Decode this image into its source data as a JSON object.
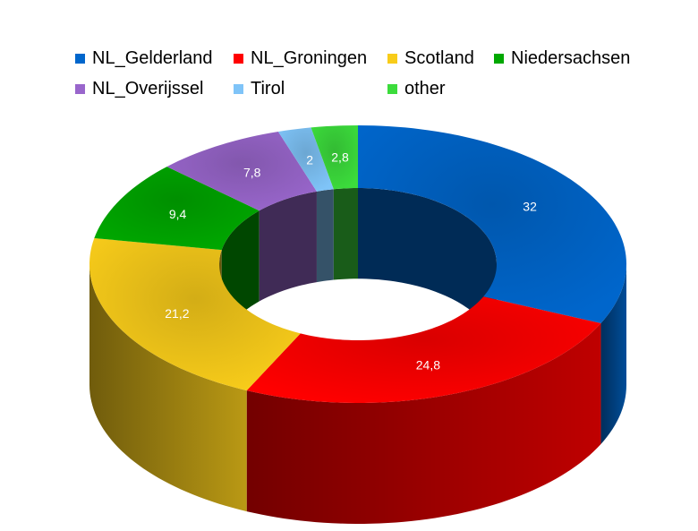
{
  "chart_data": {
    "type": "pie",
    "variant": "3d-donut",
    "title": "",
    "legend_position": "top",
    "series": [
      {
        "name": "NL_Gelderland",
        "value": 32,
        "label": "32",
        "color": "#0066CC"
      },
      {
        "name": "NL_Groningen",
        "value": 24.8,
        "label": "24,8",
        "color": "#FF0000"
      },
      {
        "name": "Scotland",
        "value": 21.2,
        "label": "21,2",
        "color": "#F8CC1A"
      },
      {
        "name": "Niedersachsen",
        "value": 9.4,
        "label": "9,4",
        "color": "#00A800"
      },
      {
        "name": "NL_Overijssel",
        "value": 7.8,
        "label": "7,8",
        "color": "#9966CC"
      },
      {
        "name": "Tirol",
        "value": 2,
        "label": "2",
        "color": "#7FC4F8"
      },
      {
        "name": "other",
        "value": 2.8,
        "label": "2,8",
        "color": "#3CDC3C"
      }
    ]
  }
}
